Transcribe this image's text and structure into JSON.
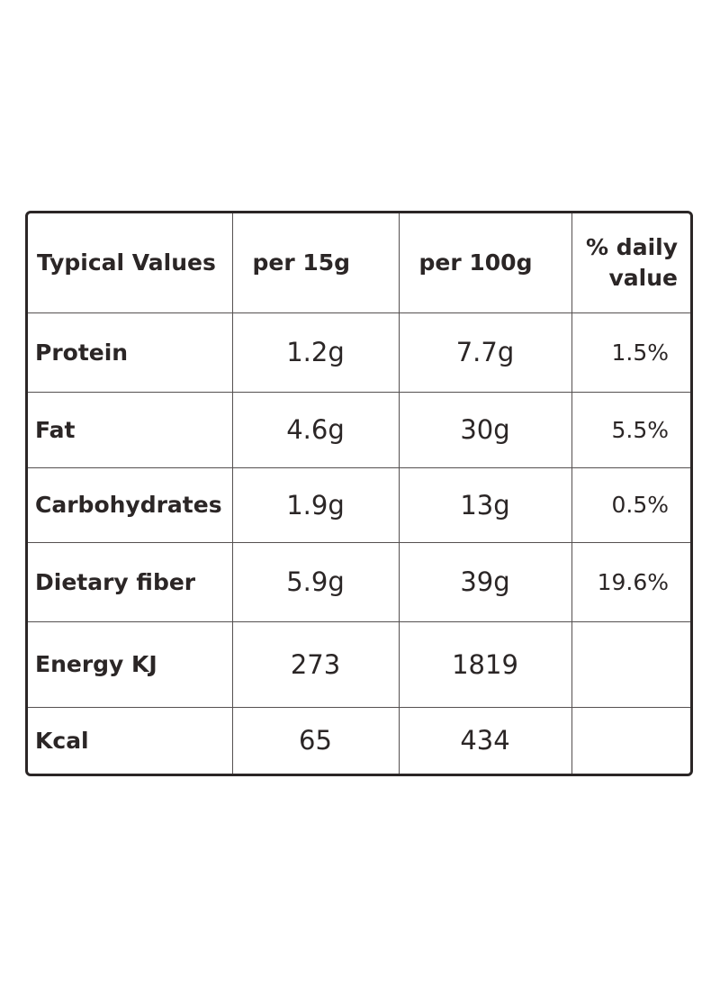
{
  "table": {
    "headers": {
      "label": "Typical Values",
      "per_15g": "per 15g",
      "per_100g": "per 100g",
      "daily_line1": "% daily",
      "daily_line2": "value"
    },
    "rows": [
      {
        "name": "Protein",
        "per_15g": "1.2g",
        "per_100g": "7.7g",
        "daily": "1.5%"
      },
      {
        "name": "Fat",
        "per_15g": "4.6g",
        "per_100g": "30g",
        "daily": "5.5%"
      },
      {
        "name": "Carbohydrates",
        "per_15g": "1.9g",
        "per_100g": "13g",
        "daily": "0.5%"
      },
      {
        "name": "Dietary fiber",
        "per_15g": "5.9g",
        "per_100g": "39g",
        "daily": "19.6%"
      },
      {
        "name": "Energy KJ",
        "per_15g": "273",
        "per_100g": "1819",
        "daily": ""
      },
      {
        "name": "Kcal",
        "per_15g": "65",
        "per_100g": "434",
        "daily": ""
      }
    ]
  }
}
